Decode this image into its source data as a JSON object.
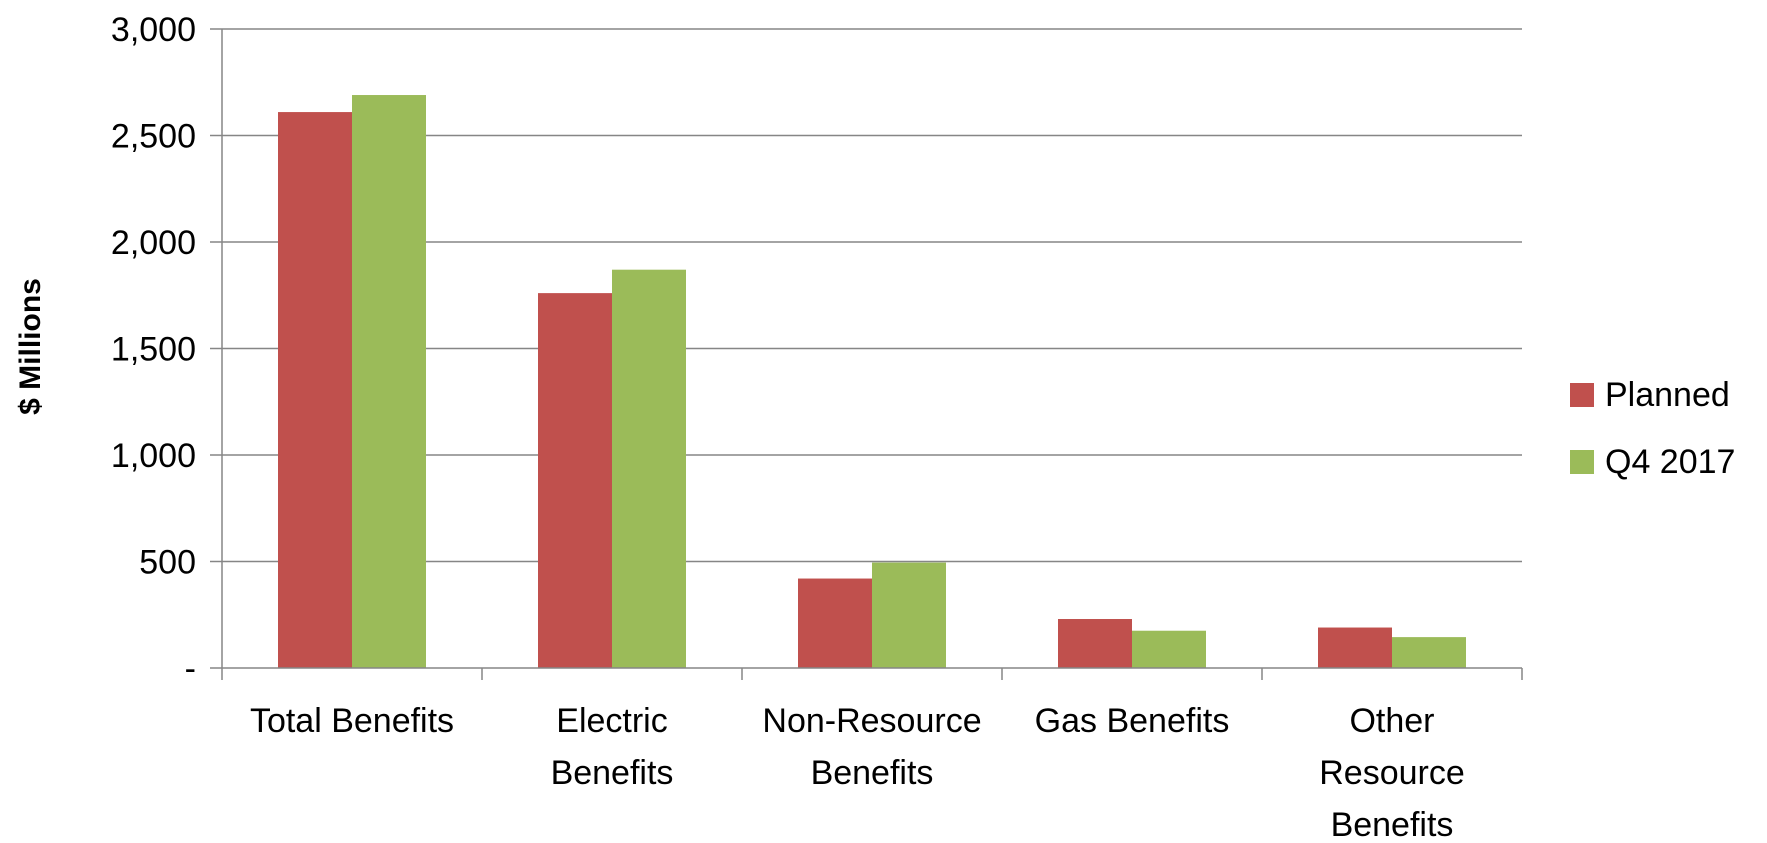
{
  "chart_data": {
    "type": "bar",
    "title": "",
    "xlabel": "",
    "ylabel": "$ Millions",
    "ylim": [
      0,
      3000
    ],
    "yticks": [
      0,
      500,
      1000,
      1500,
      2000,
      2500,
      3000
    ],
    "ytick_labels": [
      "-",
      "500",
      "1,000",
      "1,500",
      "2,000",
      "2,500",
      "3,000"
    ],
    "grid": true,
    "legend_position": "right",
    "categories": [
      [
        "Total Benefits"
      ],
      [
        "Electric",
        "Benefits"
      ],
      [
        "Non-Resource",
        "Benefits"
      ],
      [
        "Gas Benefits"
      ],
      [
        "Other",
        "Resource",
        "Benefits"
      ]
    ],
    "series": [
      {
        "name": "Planned",
        "color": "#c0504d",
        "values": [
          2610,
          1760,
          420,
          230,
          190
        ]
      },
      {
        "name": "Q4 2017",
        "color": "#9bbb59",
        "values": [
          2690,
          1870,
          495,
          175,
          145
        ]
      }
    ]
  }
}
